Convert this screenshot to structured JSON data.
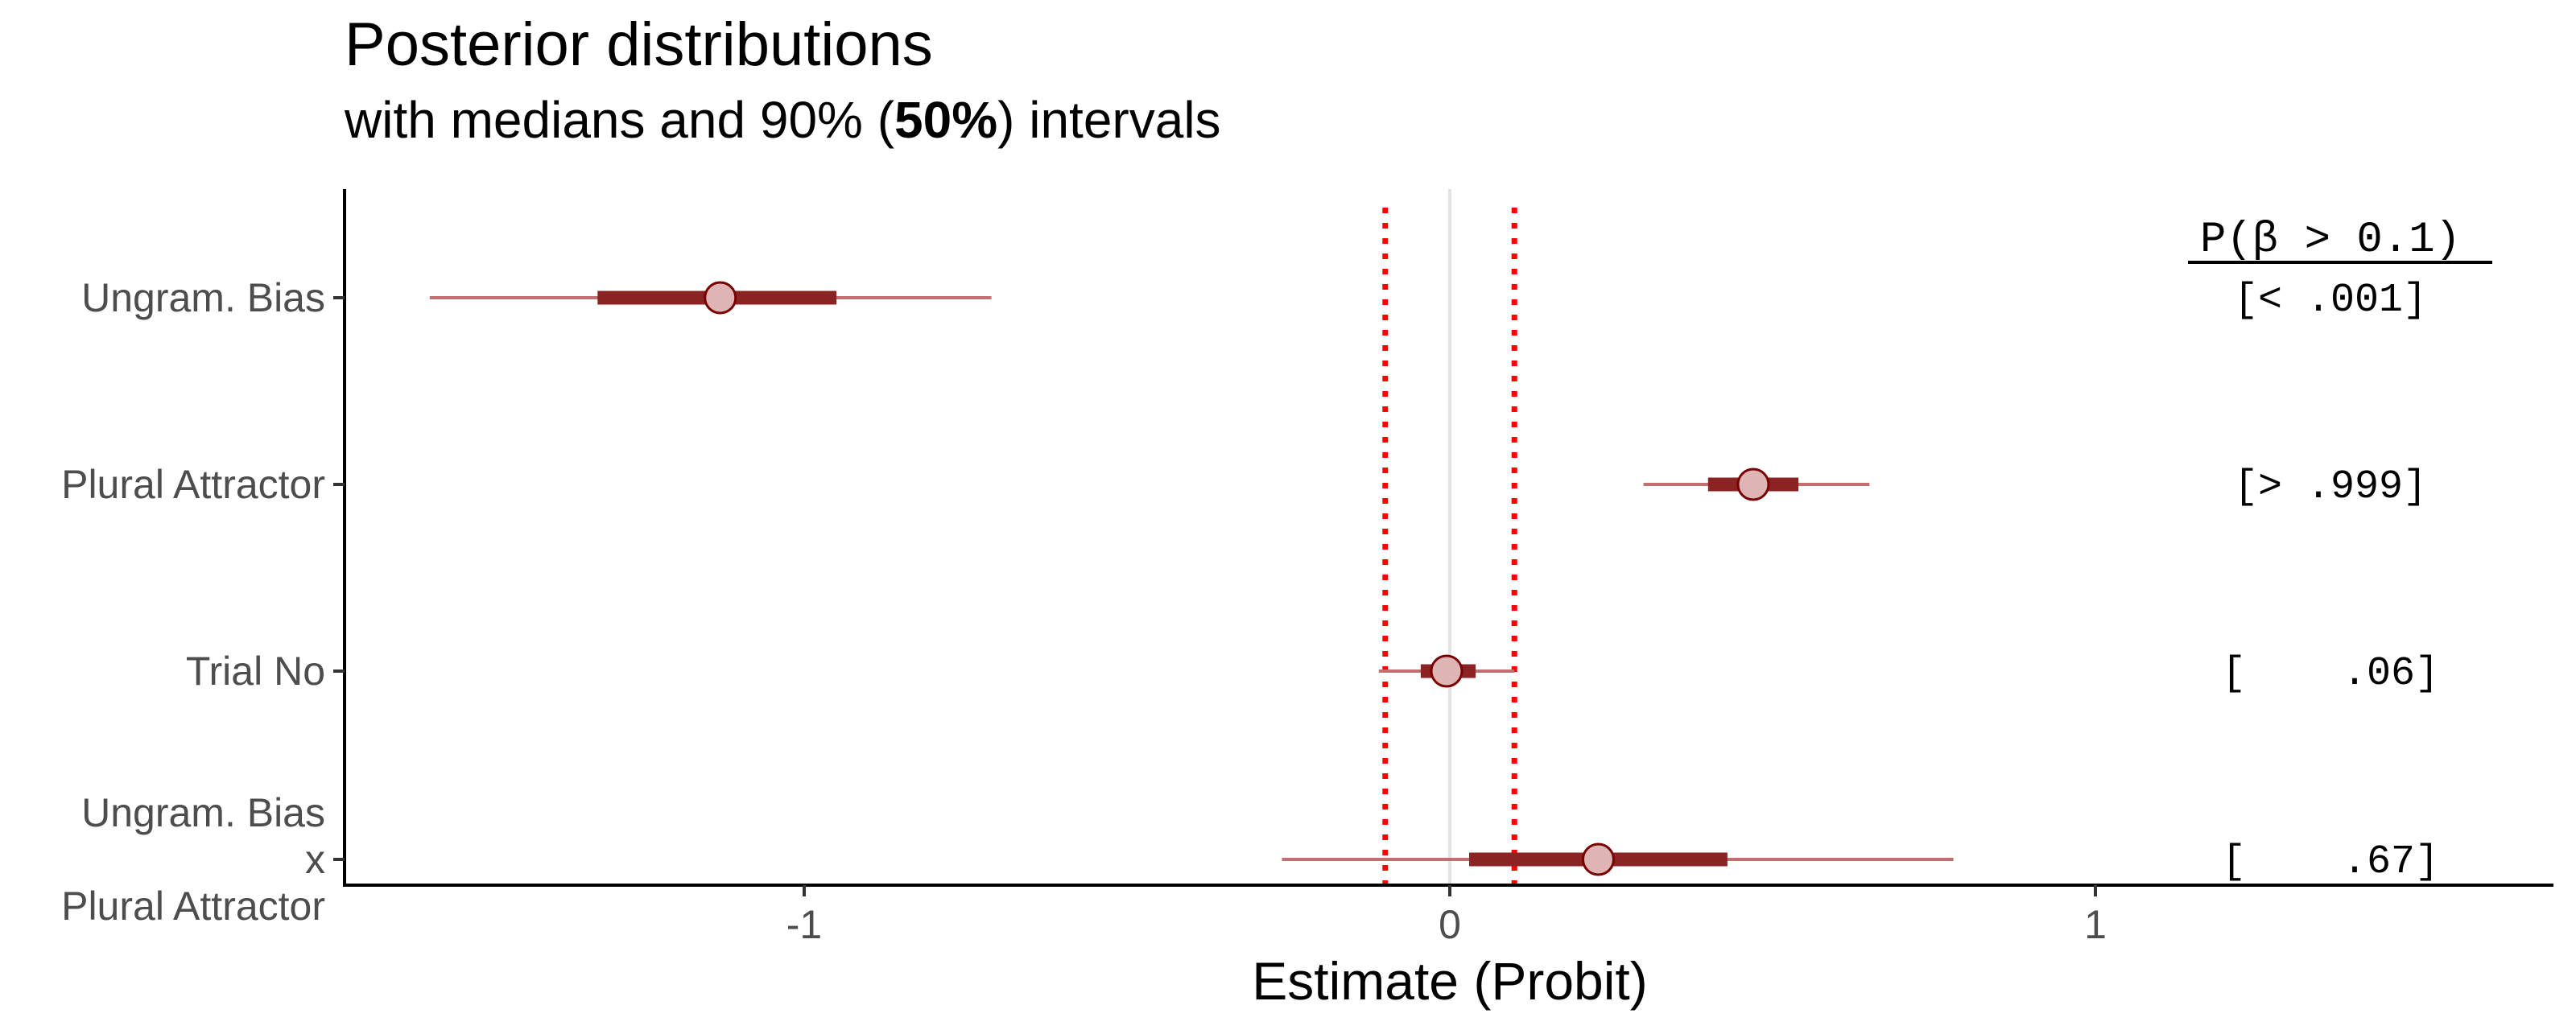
{
  "title_main": "Posterior distributions",
  "subtitle_pre": "with medians and 90% (",
  "subtitle_bold": "50%",
  "subtitle_post": ") intervals",
  "prob_header": "P(β > 0.1)",
  "colors": {
    "interval_90": "#c07070",
    "interval_50": "#8b2323",
    "point_fill": "#deb4b4",
    "point_stroke": "#7a0000",
    "rope_line": "#ff0000",
    "zero_line": "#e3e3e3"
  },
  "chart_data": {
    "type": "scatter",
    "title": "Posterior distributions",
    "subtitle": "with medians and 90% (50%) intervals",
    "xlabel": "Estimate (Probit)",
    "ylabel": "",
    "xlim": [
      -1.72,
      1.72
    ],
    "x_ticks": [
      -1,
      0,
      1
    ],
    "x_tick_labels": [
      "-1",
      "0",
      "1"
    ],
    "rope_lines": [
      -0.1,
      0.1
    ],
    "zero_line": 0,
    "grid": false,
    "categories": [
      {
        "label_lines": [
          "Ungram. Bias"
        ],
        "median": -1.13,
        "ci90": [
          -1.58,
          -0.71
        ],
        "ci50": [
          -1.32,
          -0.95
        ],
        "prob": "[< .001]"
      },
      {
        "label_lines": [
          "Plural Attractor"
        ],
        "median": 0.47,
        "ci90": [
          0.3,
          0.65
        ],
        "ci50": [
          0.4,
          0.54
        ],
        "prob": "[> .999]"
      },
      {
        "label_lines": [
          "Trial No"
        ],
        "median": -0.005,
        "ci90": [
          -0.11,
          0.1
        ],
        "ci50": [
          -0.045,
          0.04
        ],
        "prob": "[    .06]"
      },
      {
        "label_lines": [
          "Ungram. Bias",
          "x",
          "Plural Attractor"
        ],
        "median": 0.23,
        "ci90": [
          -0.26,
          0.78
        ],
        "ci50": [
          0.03,
          0.43
        ],
        "prob": "[    .67]"
      }
    ]
  }
}
